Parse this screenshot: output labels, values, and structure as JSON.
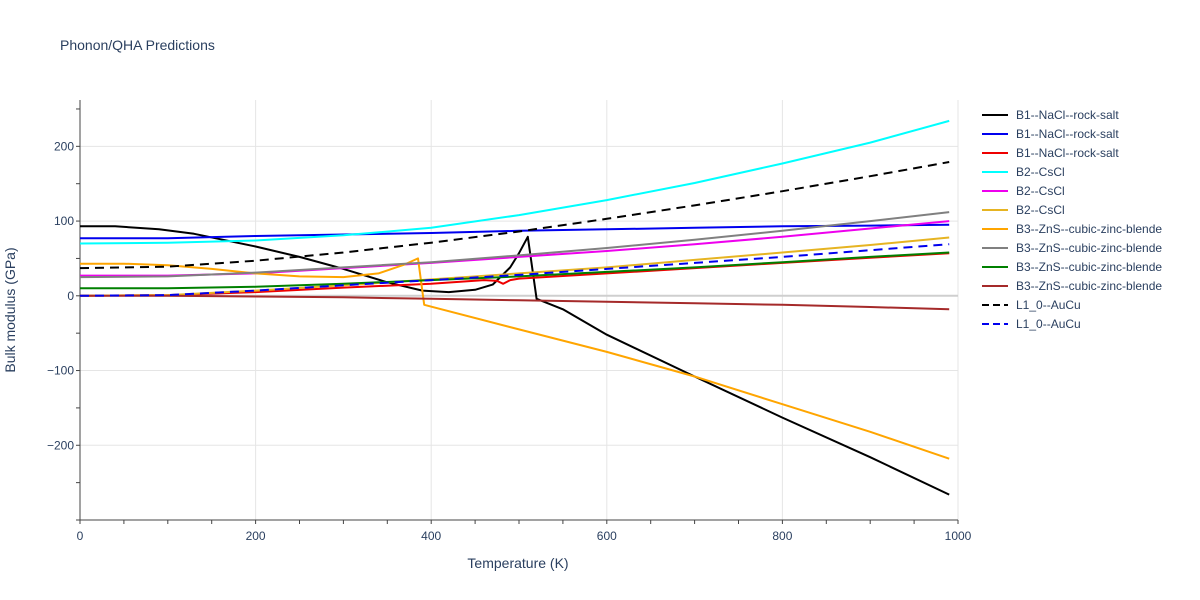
{
  "chart_data": {
    "type": "line",
    "title": "Phonon/QHA Predictions",
    "xlabel": "Temperature (K)",
    "ylabel": "Bulk modulus (GPa)",
    "xlim": [
      0,
      1000
    ],
    "ylim": [
      -300,
      262
    ],
    "xticks": [
      0,
      200,
      400,
      600,
      800,
      1000
    ],
    "yticks": [
      -200,
      -100,
      0,
      100,
      200
    ],
    "grid": true,
    "legend_position": "right",
    "series": [
      {
        "name": "B1--NaCl--rock-salt",
        "color": "#000000",
        "dash": "solid",
        "x": [
          0,
          40,
          90,
          130,
          200,
          250,
          300,
          350,
          390,
          420,
          450,
          470,
          490,
          500,
          510,
          520,
          550,
          600,
          700,
          800,
          900,
          990
        ],
        "y": [
          93,
          93,
          89,
          83,
          66,
          52,
          36,
          18,
          7,
          5,
          8,
          15,
          38,
          57,
          79,
          -4,
          -18,
          -52,
          -108,
          -163,
          -216,
          -266
        ]
      },
      {
        "name": "B1--NaCl--rock-salt",
        "color": "#0000ee",
        "dash": "solid",
        "x": [
          0,
          100,
          200,
          300,
          400,
          500,
          600,
          700,
          800,
          900,
          990
        ],
        "y": [
          77,
          77,
          80,
          82,
          84,
          87,
          89,
          91,
          93,
          94,
          95
        ]
      },
      {
        "name": "B1--NaCl--rock-salt",
        "color": "#ee0000",
        "dash": "solid",
        "x": [
          0,
          100,
          200,
          300,
          400,
          460,
          475,
          482,
          490,
          500,
          600,
          700,
          800,
          900,
          990
        ],
        "y": [
          0,
          1,
          5,
          11,
          16,
          21,
          20,
          16,
          21,
          23,
          30,
          37,
          44,
          51,
          57
        ]
      },
      {
        "name": "B2--CsCl",
        "color": "#00ffff",
        "dash": "solid",
        "x": [
          0,
          100,
          200,
          300,
          400,
          500,
          600,
          700,
          800,
          900,
          990
        ],
        "y": [
          70,
          71,
          74,
          81,
          91,
          108,
          128,
          151,
          177,
          205,
          234
        ]
      },
      {
        "name": "B2--CsCl",
        "color": "#ee00ee",
        "dash": "solid",
        "x": [
          0,
          100,
          200,
          300,
          400,
          500,
          600,
          700,
          800,
          900,
          990
        ],
        "y": [
          27,
          27,
          30,
          37,
          44,
          52,
          60,
          69,
          79,
          90,
          100
        ]
      },
      {
        "name": "B2--CsCl",
        "color": "#e6b422",
        "dash": "solid",
        "x": [
          0,
          100,
          200,
          300,
          400,
          500,
          600,
          700,
          800,
          900,
          990
        ],
        "y": [
          0,
          1,
          7,
          14,
          22,
          30,
          38,
          48,
          58,
          68,
          78
        ]
      },
      {
        "name": "B3--ZnS--cubic-zinc-blende",
        "color": "#ffa500",
        "dash": "solid",
        "x": [
          0,
          50,
          100,
          150,
          200,
          250,
          300,
          340,
          370,
          385,
          392,
          500,
          600,
          700,
          800,
          900,
          990
        ],
        "y": [
          43,
          43,
          41,
          36,
          30,
          26,
          25,
          30,
          42,
          50,
          -12,
          -45,
          -75,
          -108,
          -145,
          -182,
          -218
        ]
      },
      {
        "name": "B3--ZnS--cubic-zinc-blende",
        "color": "#808080",
        "dash": "solid",
        "x": [
          0,
          100,
          200,
          300,
          400,
          500,
          600,
          700,
          800,
          900,
          990
        ],
        "y": [
          25,
          26,
          31,
          38,
          45,
          54,
          64,
          75,
          87,
          100,
          112
        ]
      },
      {
        "name": "B3--ZnS--cubic-zinc-blende",
        "color": "#008000",
        "dash": "solid",
        "x": [
          0,
          100,
          200,
          300,
          400,
          500,
          600,
          700,
          800,
          900,
          990
        ],
        "y": [
          10,
          10,
          12,
          16,
          21,
          26,
          32,
          38,
          45,
          52,
          58
        ]
      },
      {
        "name": "B3--ZnS--cubic-zinc-blende",
        "color": "#a52a2a",
        "dash": "solid",
        "x": [
          0,
          100,
          200,
          300,
          400,
          500,
          600,
          700,
          800,
          900,
          990
        ],
        "y": [
          0,
          0,
          -1,
          -2,
          -4,
          -6,
          -8,
          -10,
          -12,
          -15,
          -18
        ]
      },
      {
        "name": "L1_0--AuCu",
        "color": "#000000",
        "dash": "dash",
        "x": [
          0,
          100,
          200,
          300,
          400,
          500,
          600,
          700,
          800,
          900,
          990
        ],
        "y": [
          37,
          39,
          47,
          58,
          71,
          86,
          103,
          121,
          140,
          160,
          179
        ]
      },
      {
        "name": "L1_0--AuCu",
        "color": "#0000ee",
        "dash": "dash",
        "x": [
          0,
          100,
          200,
          300,
          400,
          500,
          600,
          700,
          800,
          900,
          990
        ],
        "y": [
          0,
          1,
          7,
          14,
          21,
          28,
          36,
          44,
          52,
          61,
          69
        ]
      }
    ]
  }
}
